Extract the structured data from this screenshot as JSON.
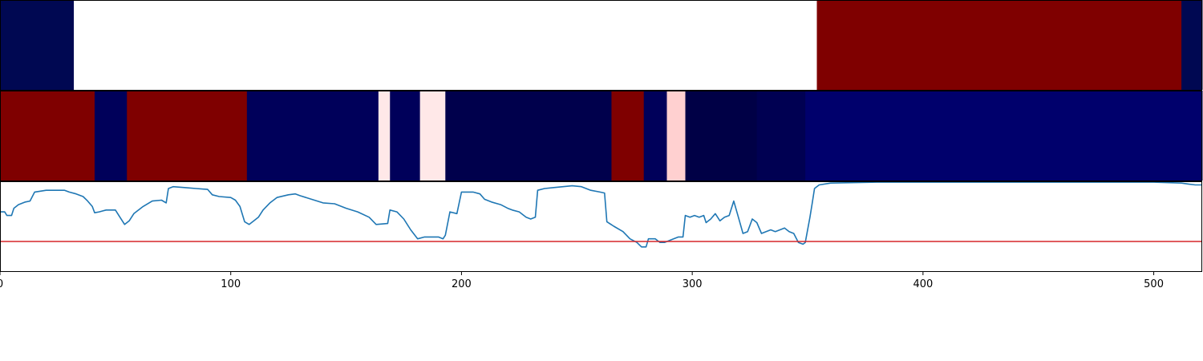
{
  "chart_data": [
    {
      "type": "heatmap",
      "panel": "top-strip",
      "xlim": [
        0,
        521
      ],
      "colormap": "seismic",
      "segments": [
        {
          "start": 0,
          "end": 32,
          "color": "#000852"
        },
        {
          "start": 32,
          "end": 354,
          "color": "#ffffff"
        },
        {
          "start": 354,
          "end": 512,
          "color": "#7f0000"
        },
        {
          "start": 512,
          "end": 521,
          "color": "#000852"
        }
      ]
    },
    {
      "type": "heatmap",
      "panel": "middle-strip",
      "xlim": [
        0,
        521
      ],
      "colormap": "seismic",
      "segments": [
        {
          "start": 0,
          "end": 41,
          "color": "#7f0000"
        },
        {
          "start": 41,
          "end": 55,
          "color": "#00005a"
        },
        {
          "start": 55,
          "end": 107,
          "color": "#7f0000"
        },
        {
          "start": 107,
          "end": 164,
          "color": "#00005a"
        },
        {
          "start": 164,
          "end": 169,
          "color": "#ffe8e8"
        },
        {
          "start": 169,
          "end": 182,
          "color": "#00005a"
        },
        {
          "start": 182,
          "end": 193,
          "color": "#ffe8e8"
        },
        {
          "start": 193,
          "end": 265,
          "color": "#00004c"
        },
        {
          "start": 265,
          "end": 279,
          "color": "#7f0000"
        },
        {
          "start": 279,
          "end": 289,
          "color": "#00005a"
        },
        {
          "start": 289,
          "end": 297,
          "color": "#ffd0d0"
        },
        {
          "start": 297,
          "end": 328,
          "color": "#000046"
        },
        {
          "start": 328,
          "end": 349,
          "color": "#000052"
        },
        {
          "start": 349,
          "end": 521,
          "color": "#00006c"
        }
      ]
    },
    {
      "type": "line",
      "panel": "bottom-line",
      "xlim": [
        0,
        521
      ],
      "ylim": [
        0,
        1
      ],
      "x_ticks": [
        "0",
        "100",
        "200",
        "300",
        "400",
        "500"
      ],
      "x_tick_values": [
        0,
        100,
        200,
        300,
        400,
        500
      ],
      "series": [
        {
          "color": "#1f77b4",
          "points": [
            [
              0,
              0.66
            ],
            [
              2,
              0.66
            ],
            [
              3,
              0.62
            ],
            [
              5,
              0.62
            ],
            [
              6,
              0.7
            ],
            [
              8,
              0.74
            ],
            [
              11,
              0.77
            ],
            [
              13,
              0.78
            ],
            [
              15,
              0.88
            ],
            [
              20,
              0.9
            ],
            [
              25,
              0.9
            ],
            [
              28,
              0.9
            ],
            [
              30,
              0.88
            ],
            [
              33,
              0.86
            ],
            [
              36,
              0.83
            ],
            [
              38,
              0.78
            ],
            [
              40,
              0.72
            ],
            [
              41,
              0.65
            ],
            [
              43,
              0.66
            ],
            [
              46,
              0.68
            ],
            [
              50,
              0.68
            ],
            [
              52,
              0.6
            ],
            [
              54,
              0.52
            ],
            [
              56,
              0.56
            ],
            [
              58,
              0.64
            ],
            [
              62,
              0.72
            ],
            [
              66,
              0.78
            ],
            [
              70,
              0.79
            ],
            [
              72,
              0.76
            ],
            [
              73,
              0.92
            ],
            [
              75,
              0.94
            ],
            [
              80,
              0.93
            ],
            [
              85,
              0.92
            ],
            [
              90,
              0.91
            ],
            [
              92,
              0.85
            ],
            [
              95,
              0.83
            ],
            [
              100,
              0.82
            ],
            [
              102,
              0.79
            ],
            [
              104,
              0.72
            ],
            [
              106,
              0.55
            ],
            [
              108,
              0.52
            ],
            [
              110,
              0.56
            ],
            [
              112,
              0.6
            ],
            [
              114,
              0.68
            ],
            [
              117,
              0.76
            ],
            [
              120,
              0.82
            ],
            [
              125,
              0.85
            ],
            [
              128,
              0.86
            ],
            [
              130,
              0.84
            ],
            [
              135,
              0.8
            ],
            [
              140,
              0.76
            ],
            [
              145,
              0.75
            ],
            [
              150,
              0.7
            ],
            [
              155,
              0.66
            ],
            [
              160,
              0.6
            ],
            [
              163,
              0.52
            ],
            [
              168,
              0.53
            ],
            [
              169,
              0.68
            ],
            [
              172,
              0.66
            ],
            [
              175,
              0.58
            ],
            [
              178,
              0.46
            ],
            [
              181,
              0.36
            ],
            [
              184,
              0.38
            ],
            [
              190,
              0.38
            ],
            [
              192,
              0.36
            ],
            [
              193,
              0.4
            ],
            [
              195,
              0.66
            ],
            [
              198,
              0.64
            ],
            [
              200,
              0.88
            ],
            [
              205,
              0.88
            ],
            [
              208,
              0.86
            ],
            [
              210,
              0.8
            ],
            [
              213,
              0.77
            ],
            [
              217,
              0.74
            ],
            [
              220,
              0.7
            ],
            [
              222,
              0.68
            ],
            [
              225,
              0.66
            ],
            [
              228,
              0.6
            ],
            [
              230,
              0.58
            ],
            [
              232,
              0.6
            ],
            [
              233,
              0.9
            ],
            [
              236,
              0.92
            ],
            [
              240,
              0.93
            ],
            [
              244,
              0.94
            ],
            [
              248,
              0.95
            ],
            [
              252,
              0.94
            ],
            [
              256,
              0.9
            ],
            [
              260,
              0.88
            ],
            [
              262,
              0.87
            ],
            [
              263,
              0.55
            ],
            [
              266,
              0.5
            ],
            [
              270,
              0.44
            ],
            [
              273,
              0.36
            ],
            [
              276,
              0.32
            ],
            [
              278,
              0.27
            ],
            [
              280,
              0.27
            ],
            [
              281,
              0.36
            ],
            [
              284,
              0.36
            ],
            [
              286,
              0.32
            ],
            [
              288,
              0.32
            ],
            [
              291,
              0.35
            ],
            [
              294,
              0.38
            ],
            [
              296,
              0.38
            ],
            [
              297,
              0.62
            ],
            [
              299,
              0.6
            ],
            [
              301,
              0.62
            ],
            [
              303,
              0.6
            ],
            [
              305,
              0.62
            ],
            [
              306,
              0.54
            ],
            [
              308,
              0.58
            ],
            [
              310,
              0.64
            ],
            [
              312,
              0.56
            ],
            [
              314,
              0.6
            ],
            [
              316,
              0.62
            ],
            [
              318,
              0.78
            ],
            [
              320,
              0.6
            ],
            [
              322,
              0.42
            ],
            [
              324,
              0.44
            ],
            [
              326,
              0.58
            ],
            [
              328,
              0.54
            ],
            [
              330,
              0.42
            ],
            [
              332,
              0.44
            ],
            [
              334,
              0.46
            ],
            [
              336,
              0.44
            ],
            [
              338,
              0.46
            ],
            [
              340,
              0.48
            ],
            [
              342,
              0.44
            ],
            [
              344,
              0.42
            ],
            [
              346,
              0.32
            ],
            [
              348,
              0.3
            ],
            [
              349,
              0.32
            ],
            [
              351,
              0.6
            ],
            [
              352,
              0.76
            ],
            [
              353,
              0.92
            ],
            [
              355,
              0.96
            ],
            [
              360,
              0.98
            ],
            [
              380,
              0.99
            ],
            [
              420,
              0.99
            ],
            [
              460,
              0.99
            ],
            [
              500,
              0.99
            ],
            [
              512,
              0.98
            ],
            [
              515,
              0.97
            ],
            [
              518,
              0.96
            ],
            [
              521,
              0.96
            ]
          ]
        },
        {
          "color": "#d62728",
          "points": [
            [
              0,
              0.33
            ],
            [
              521,
              0.33
            ]
          ]
        }
      ]
    }
  ]
}
